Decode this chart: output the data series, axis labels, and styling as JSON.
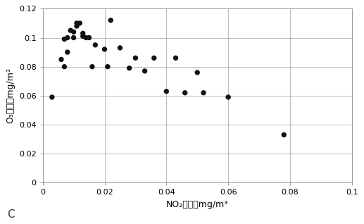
{
  "scatter_x": [
    0.003,
    0.006,
    0.007,
    0.007,
    0.008,
    0.008,
    0.009,
    0.01,
    0.01,
    0.011,
    0.011,
    0.012,
    0.013,
    0.013,
    0.014,
    0.015,
    0.016,
    0.017,
    0.02,
    0.021,
    0.022,
    0.025,
    0.028,
    0.03,
    0.033,
    0.036,
    0.04,
    0.043,
    0.046,
    0.05,
    0.052,
    0.06,
    0.078
  ],
  "scatter_y": [
    0.059,
    0.085,
    0.08,
    0.099,
    0.09,
    0.1,
    0.105,
    0.1,
    0.104,
    0.11,
    0.108,
    0.11,
    0.103,
    0.101,
    0.1,
    0.1,
    0.08,
    0.095,
    0.092,
    0.08,
    0.112,
    0.093,
    0.079,
    0.086,
    0.077,
    0.086,
    0.063,
    0.086,
    0.062,
    0.076,
    0.062,
    0.059,
    0.033
  ],
  "xlabel": "NO₂浓度，mg/m³",
  "ylabel": "O₃浓度，mg/m³",
  "label_c": "C",
  "xlim": [
    0,
    0.1
  ],
  "ylim": [
    0,
    0.12
  ],
  "xticks": [
    0,
    0.02,
    0.04,
    0.06,
    0.08,
    0.1
  ],
  "yticks": [
    0,
    0.02,
    0.04,
    0.06,
    0.08,
    0.1,
    0.12
  ],
  "dot_color": "#111111",
  "grid_color_solid": "#aaaaaa",
  "grid_color_dotted": "#d0a0a0",
  "background_color": "#ffffff",
  "dot_size": 28
}
